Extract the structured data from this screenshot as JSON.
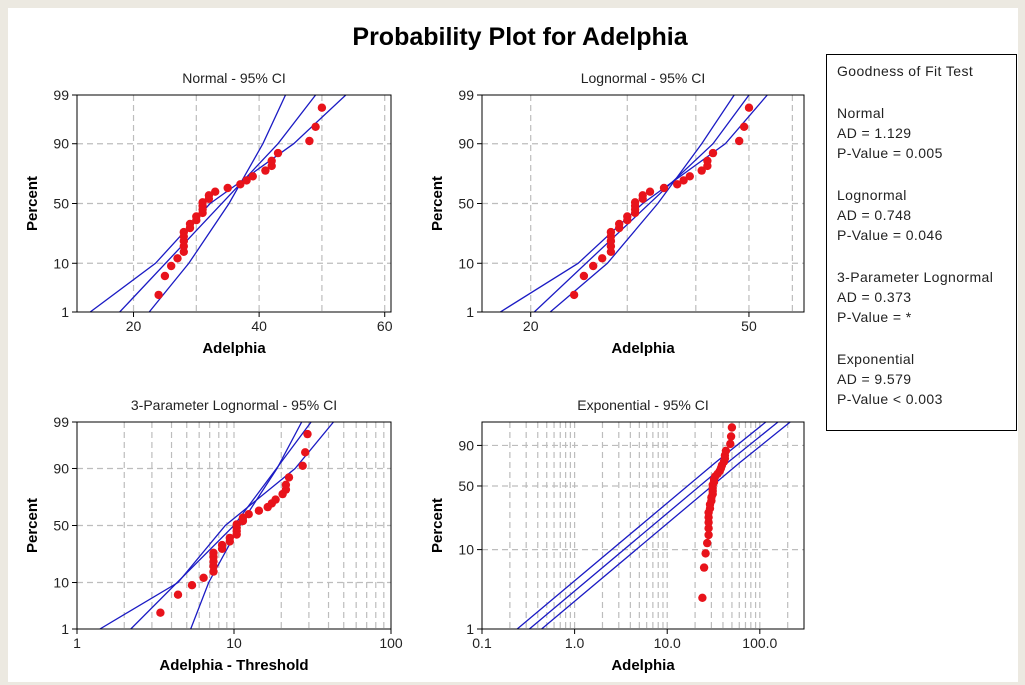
{
  "figure": {
    "title": "Probability Plot for Adelphia",
    "colors": {
      "background": "#ece9e1",
      "panel_bg": "#ffffff",
      "points": "#e8131b",
      "lines": "#1b1bc4",
      "grid": "#bdbdbd"
    }
  },
  "goodness_of_fit": {
    "title": "Goodness of Fit Test",
    "sections": [
      {
        "name": "Normal",
        "ad": "AD = 1.129",
        "p": "P-Value = 0.005"
      },
      {
        "name": "Lognormal",
        "ad": "AD = 0.748",
        "p": "P-Value = 0.046"
      },
      {
        "name": "3-Parameter Lognormal",
        "ad": "AD = 0.373",
        "p": "P-Value = *"
      },
      {
        "name": "Exponential",
        "ad": "AD = 9.579",
        "p": "P-Value < 0.003"
      }
    ]
  },
  "chart_data": [
    {
      "type": "scatter",
      "title": "Normal - 95% CI",
      "xlabel": "Adelphia",
      "ylabel": "Percent",
      "x_scale": "linear",
      "xlim": [
        11,
        61
      ],
      "x_ticks": [
        20,
        40,
        60
      ],
      "x_tick_labels": [
        "20",
        "40",
        "60"
      ],
      "x_grid": [
        20,
        30,
        40,
        50,
        60
      ],
      "y_scale": "probability-normal",
      "ylim_percent": [
        1,
        99
      ],
      "y_ticks": [
        1,
        10,
        50,
        90,
        99
      ],
      "y_tick_labels": [
        "1",
        "10",
        "50",
        "90",
        "99"
      ],
      "y_grid": [
        10,
        50,
        90
      ],
      "points": [
        [
          24,
          2.5
        ],
        [
          25,
          6
        ],
        [
          26,
          9
        ],
        [
          27,
          12
        ],
        [
          28,
          15
        ],
        [
          28,
          18
        ],
        [
          28,
          21
        ],
        [
          28,
          24
        ],
        [
          28,
          27
        ],
        [
          29,
          30
        ],
        [
          29,
          33
        ],
        [
          30,
          36
        ],
        [
          30,
          39
        ],
        [
          31,
          42
        ],
        [
          31,
          45
        ],
        [
          31,
          48
        ],
        [
          31,
          51
        ],
        [
          32,
          54
        ],
        [
          32,
          57
        ],
        [
          33,
          60
        ],
        [
          35,
          63
        ],
        [
          37,
          66
        ],
        [
          38,
          69
        ],
        [
          39,
          72
        ],
        [
          41,
          76
        ],
        [
          42,
          79
        ],
        [
          42,
          82
        ],
        [
          43,
          86
        ],
        [
          48,
          91
        ],
        [
          49,
          95
        ],
        [
          50,
          98
        ]
      ],
      "fit_line": [
        [
          17.8,
          1
        ],
        [
          43.0,
          90
        ],
        [
          49.0,
          99
        ]
      ],
      "ci_lower": [
        [
          13.1,
          1
        ],
        [
          23.5,
          10
        ],
        [
          32.2,
          50
        ],
        [
          45.5,
          90
        ],
        [
          53.8,
          99
        ]
      ],
      "ci_upper": [
        [
          22.5,
          1
        ],
        [
          28.8,
          10
        ],
        [
          35.2,
          50
        ],
        [
          40.6,
          90
        ],
        [
          44.2,
          99
        ]
      ]
    },
    {
      "type": "scatter",
      "title": "Lognormal - 95% CI",
      "xlabel": "Adelphia",
      "ylabel": "Percent",
      "x_scale": "log",
      "xlim": [
        16.3,
        63
      ],
      "x_ticks": [
        20,
        50
      ],
      "x_tick_labels": [
        "20",
        "50"
      ],
      "x_grid": [
        20,
        30,
        40,
        50,
        60
      ],
      "y_scale": "probability-normal",
      "ylim_percent": [
        1,
        99
      ],
      "y_ticks": [
        1,
        10,
        50,
        90,
        99
      ],
      "y_tick_labels": [
        "1",
        "10",
        "50",
        "90",
        "99"
      ],
      "y_grid": [
        10,
        50,
        90
      ],
      "points": [
        [
          24,
          2.5
        ],
        [
          25,
          6
        ],
        [
          26,
          9
        ],
        [
          27,
          12
        ],
        [
          28,
          15
        ],
        [
          28,
          18
        ],
        [
          28,
          21
        ],
        [
          28,
          24
        ],
        [
          28,
          27
        ],
        [
          29,
          30
        ],
        [
          29,
          33
        ],
        [
          30,
          36
        ],
        [
          30,
          39
        ],
        [
          31,
          42
        ],
        [
          31,
          45
        ],
        [
          31,
          48
        ],
        [
          31,
          51
        ],
        [
          32,
          54
        ],
        [
          32,
          57
        ],
        [
          33,
          60
        ],
        [
          35,
          63
        ],
        [
          37,
          66
        ],
        [
          38,
          69
        ],
        [
          39,
          72
        ],
        [
          41,
          76
        ],
        [
          42,
          79
        ],
        [
          42,
          82
        ],
        [
          43,
          86
        ],
        [
          48,
          91
        ],
        [
          49,
          95
        ],
        [
          50,
          98
        ]
      ],
      "fit_line": [
        [
          20.3,
          1
        ],
        [
          43.0,
          90
        ],
        [
          50.0,
          99
        ]
      ],
      "ci_lower": [
        [
          17.6,
          1
        ],
        [
          24.4,
          10
        ],
        [
          32.0,
          50
        ],
        [
          45.3,
          90
        ],
        [
          54.0,
          99
        ]
      ],
      "ci_upper": [
        [
          21.7,
          1
        ],
        [
          27.6,
          10
        ],
        [
          34.1,
          50
        ],
        [
          41.0,
          90
        ],
        [
          47.0,
          99
        ]
      ]
    },
    {
      "type": "scatter",
      "title": "3-Parameter Lognormal - 95% CI",
      "xlabel": "Adelphia - Threshold",
      "ylabel": "Percent",
      "x_scale": "log",
      "xlim": [
        1,
        100
      ],
      "x_ticks": [
        1,
        10,
        100
      ],
      "x_tick_labels": [
        "1",
        "10",
        "100"
      ],
      "x_grid": [
        2,
        3,
        4,
        5,
        6,
        7,
        8,
        9,
        10,
        20,
        30,
        40,
        50,
        60,
        70,
        80,
        90
      ],
      "y_scale": "probability-normal",
      "ylim_percent": [
        1,
        99
      ],
      "y_ticks": [
        1,
        10,
        50,
        90,
        99
      ],
      "y_tick_labels": [
        "1",
        "10",
        "50",
        "90",
        "99"
      ],
      "y_grid": [
        10,
        50,
        90
      ],
      "points": [
        [
          3.4,
          2.5
        ],
        [
          4.4,
          6
        ],
        [
          5.4,
          9
        ],
        [
          6.4,
          12
        ],
        [
          7.4,
          15
        ],
        [
          7.4,
          18
        ],
        [
          7.4,
          21
        ],
        [
          7.4,
          24
        ],
        [
          7.4,
          27
        ],
        [
          8.4,
          30
        ],
        [
          8.4,
          33
        ],
        [
          9.4,
          36
        ],
        [
          9.4,
          39
        ],
        [
          10.4,
          42
        ],
        [
          10.4,
          45
        ],
        [
          10.4,
          48
        ],
        [
          10.4,
          51
        ],
        [
          11.4,
          54
        ],
        [
          11.4,
          57
        ],
        [
          12.4,
          60
        ],
        [
          14.4,
          63
        ],
        [
          16.4,
          66
        ],
        [
          17.4,
          69
        ],
        [
          18.4,
          72
        ],
        [
          20.4,
          76
        ],
        [
          21.4,
          79
        ],
        [
          21.4,
          82
        ],
        [
          22.4,
          86
        ],
        [
          27.4,
          91
        ],
        [
          28.4,
          95
        ],
        [
          29.4,
          98
        ]
      ],
      "fit_line": [
        [
          2.2,
          1
        ],
        [
          10.0,
          50
        ],
        [
          31.0,
          99
        ]
      ],
      "ci_lower": [
        [
          1.4,
          1
        ],
        [
          4.4,
          10
        ],
        [
          8.8,
          50
        ],
        [
          24.5,
          90
        ],
        [
          43.0,
          99
        ]
      ],
      "ci_upper": [
        [
          5.3,
          1
        ],
        [
          6.9,
          10
        ],
        [
          10.9,
          50
        ],
        [
          18.8,
          90
        ],
        [
          27.0,
          99
        ]
      ]
    },
    {
      "type": "scatter",
      "title": "Exponential - 95% CI",
      "xlabel": "Adelphia",
      "ylabel": "Percent",
      "x_scale": "log",
      "xlim": [
        0.1,
        300
      ],
      "x_ticks": [
        0.1,
        1,
        10,
        100
      ],
      "x_tick_labels": [
        "0.1",
        "1.0",
        "10.0",
        "100.0"
      ],
      "x_grid": [
        0.2,
        0.3,
        0.4,
        0.5,
        0.6,
        0.7,
        0.8,
        0.9,
        1,
        2,
        3,
        4,
        5,
        6,
        7,
        8,
        9,
        10,
        20,
        30,
        40,
        50,
        60,
        70,
        80,
        90,
        100,
        200
      ],
      "y_scale": "probability-exponential",
      "ylim_percent": [
        1,
        99
      ],
      "y_ticks": [
        1,
        10,
        50,
        90
      ],
      "y_tick_labels": [
        "1",
        "10",
        "50",
        "90"
      ],
      "y_grid": [
        10,
        50,
        90
      ],
      "points": [
        [
          24,
          2.5
        ],
        [
          25,
          6
        ],
        [
          26,
          9
        ],
        [
          27,
          12
        ],
        [
          28,
          15
        ],
        [
          28,
          18
        ],
        [
          28,
          21
        ],
        [
          28,
          24
        ],
        [
          28,
          27
        ],
        [
          29,
          30
        ],
        [
          29,
          33
        ],
        [
          30,
          36
        ],
        [
          30,
          39
        ],
        [
          31,
          42
        ],
        [
          31,
          45
        ],
        [
          31,
          48
        ],
        [
          31,
          51
        ],
        [
          32,
          54
        ],
        [
          32,
          57
        ],
        [
          33,
          60
        ],
        [
          35,
          63
        ],
        [
          37,
          66
        ],
        [
          38,
          69
        ],
        [
          39,
          72
        ],
        [
          41,
          76
        ],
        [
          42,
          79
        ],
        [
          42,
          82
        ],
        [
          43,
          86
        ],
        [
          48,
          91
        ],
        [
          49,
          95
        ],
        [
          50,
          98
        ]
      ],
      "fit_line": [
        [
          0.325,
          1
        ],
        [
          45.0,
          75.1
        ],
        [
          157.0,
          99
        ]
      ],
      "ci_lower": [
        [
          0.24,
          1
        ],
        [
          33.2,
          75.1
        ],
        [
          116.0,
          99
        ]
      ],
      "ci_upper": [
        [
          0.44,
          1
        ],
        [
          61.0,
          75.1
        ],
        [
          213.0,
          99
        ]
      ]
    }
  ]
}
